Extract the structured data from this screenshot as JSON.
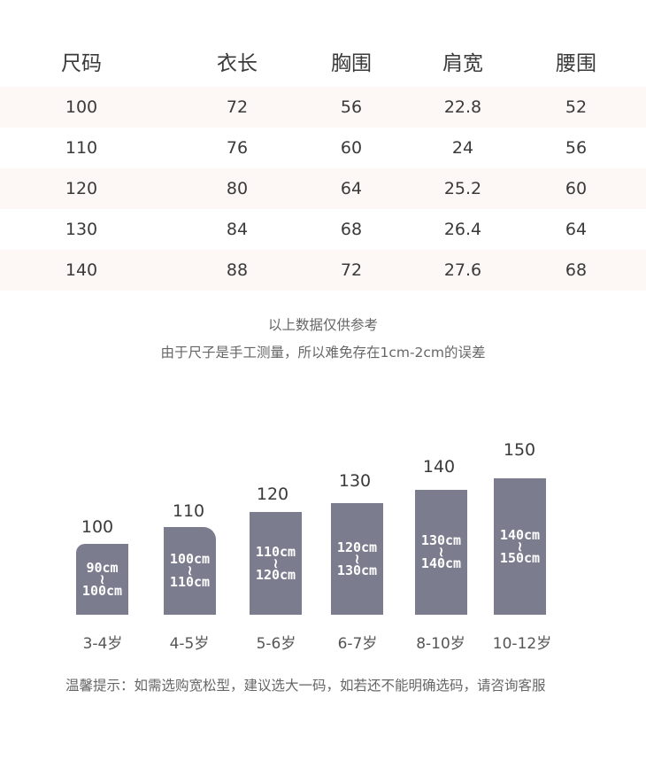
{
  "table": {
    "headers": [
      "尺码",
      "衣长",
      "胸围",
      "肩宽",
      "腰围"
    ],
    "rows": [
      [
        "100",
        "72",
        "56",
        "22.8",
        "52"
      ],
      [
        "110",
        "76",
        "60",
        "24",
        "56"
      ],
      [
        "120",
        "80",
        "64",
        "25.2",
        "60"
      ],
      [
        "130",
        "84",
        "68",
        "26.4",
        "64"
      ],
      [
        "140",
        "88",
        "72",
        "27.6",
        "68"
      ]
    ]
  },
  "notes": {
    "line1": "以上数据仅供参考",
    "line2": "由于尺子是手工测量，所以难免存在1cm-2cm的误差"
  },
  "size_chart": {
    "bars": [
      {
        "size": "100",
        "min": "90cm",
        "tilde": "≀",
        "max": "100cm",
        "age": "3-4岁"
      },
      {
        "size": "110",
        "min": "100cm",
        "tilde": "≀",
        "max": "110cm",
        "age": "4-5岁"
      },
      {
        "size": "120",
        "min": "110cm",
        "tilde": "≀",
        "max": "120cm",
        "age": "5-6岁"
      },
      {
        "size": "130",
        "min": "120cm",
        "tilde": "≀",
        "max": "130cm",
        "age": "6-7岁"
      },
      {
        "size": "140",
        "min": "130cm",
        "tilde": "≀",
        "max": "140cm",
        "age": "8-10岁"
      },
      {
        "size": "150",
        "min": "140cm",
        "tilde": "≀",
        "max": "150cm",
        "age": "10-12岁"
      }
    ],
    "bar_color": "#7b7d8f"
  },
  "tip": "温馨提示：如需选购宽松型，建议选大一码，如若还不能明确选码，请咨询客服"
}
